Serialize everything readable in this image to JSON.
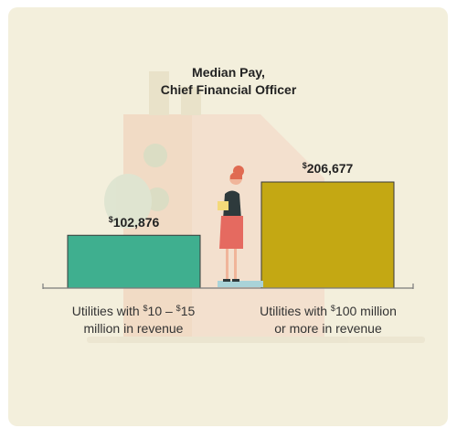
{
  "chart_data": {
    "type": "bar",
    "title": "Median Pay,",
    "subtitle": "Chief Financial Officer",
    "categories": [
      {
        "line1_pre": "Utilities with ",
        "line1_sup1": "$",
        "line1_mid": "10 – ",
        "line1_sup2": "$",
        "line1_post": "15",
        "line2": "million in revenue"
      },
      {
        "line1_pre": "Utilities with ",
        "line1_sup1": "$",
        "line1_mid": "100 million",
        "line1_sup2": "",
        "line1_post": "",
        "line2": "or more in revenue"
      }
    ],
    "values": [
      102876,
      206677
    ],
    "value_labels": [
      {
        "currency": "$",
        "amount": "102,876"
      },
      {
        "currency": "$",
        "amount": "206,677"
      }
    ],
    "colors": [
      "#3faf8f",
      "#c4a813"
    ],
    "ylim": [
      0,
      230000
    ],
    "grid": false
  },
  "colors": {
    "background": "#f3efdc",
    "illustration": "#f0d9c4",
    "axis": "#7a7a7a"
  }
}
